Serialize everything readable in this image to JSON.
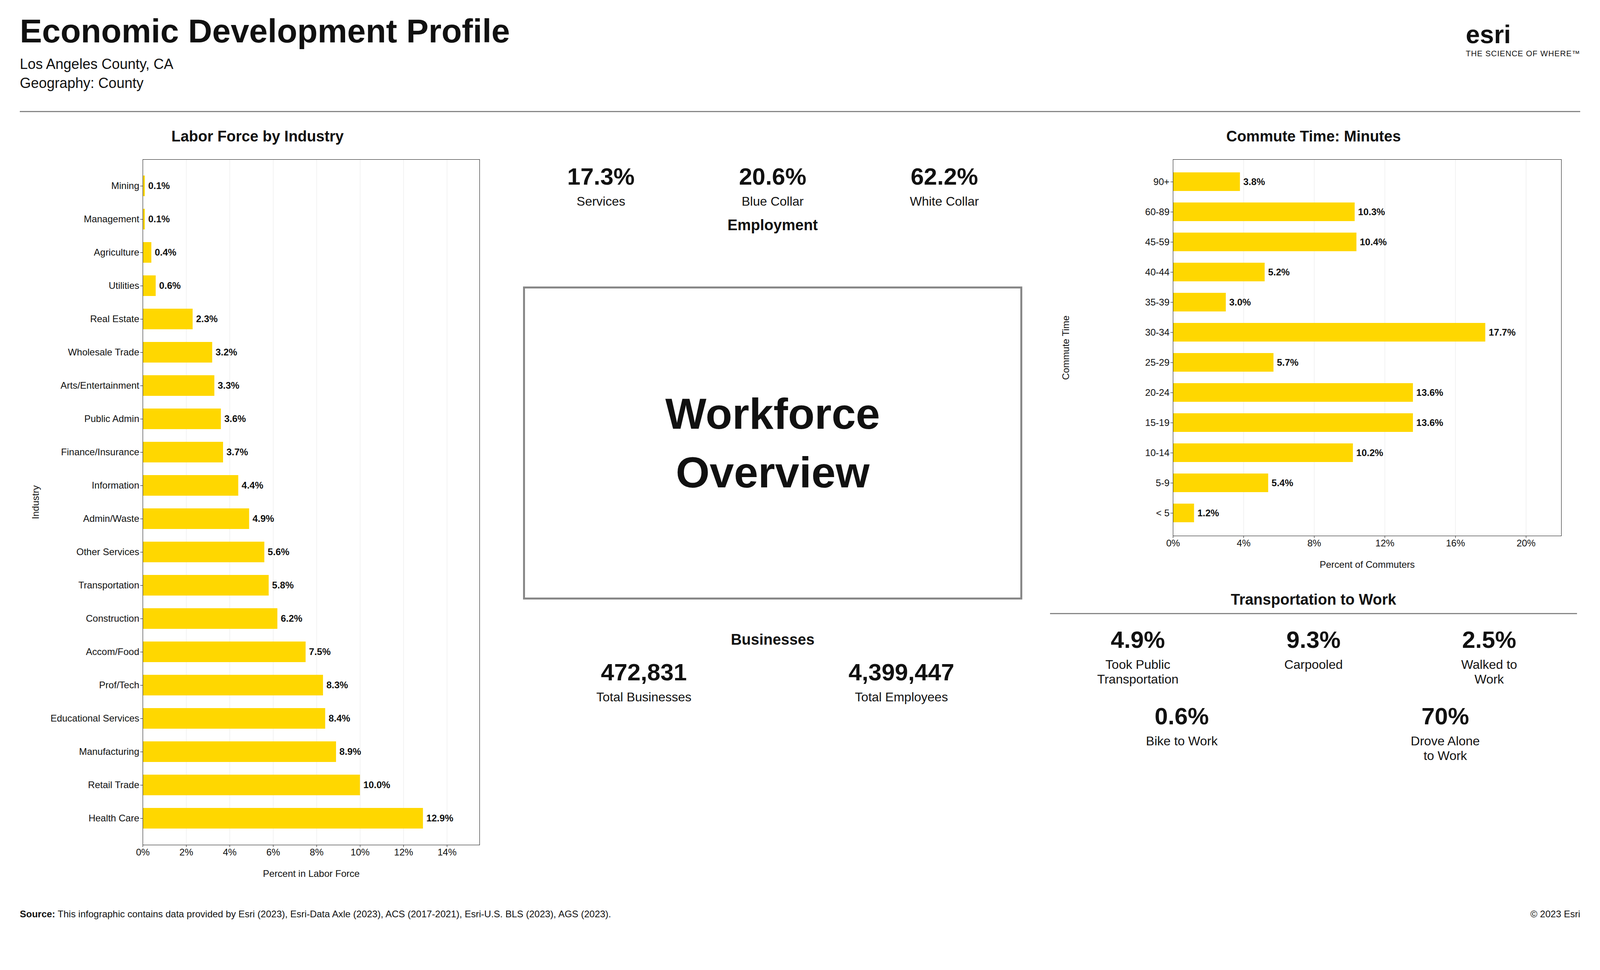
{
  "title": "Economic Development Profile",
  "subtitle": [
    "Los Angeles County, CA",
    "Geography: County"
  ],
  "logo": [
    "esri",
    "THE SCIENCE OF WHERE™"
  ],
  "chart_data": [
    {
      "type": "bar",
      "orientation": "horizontal",
      "title": "Labor Force by Industry",
      "categories": [
        "Mining",
        "Management",
        "Agriculture",
        "Utilities",
        "Real Estate",
        "Wholesale Trade",
        "Arts/Entertainment",
        "Public Admin",
        "Finance/Insurance",
        "Information",
        "Admin/Waste",
        "Other Services",
        "Transportation",
        "Construction",
        "Accom/Food",
        "Prof/Tech",
        "Educational Services",
        "Manufacturing",
        "Retail Trade",
        "Health Care"
      ],
      "values": [
        0.1,
        0.1,
        0.4,
        0.6,
        2.3,
        3.2,
        3.3,
        3.6,
        3.7,
        4.4,
        4.9,
        5.6,
        5.8,
        6.2,
        7.5,
        8.3,
        8.4,
        8.9,
        10.0,
        12.9
      ],
      "value_labels": [
        "0.1%",
        "0.1%",
        "0.4%",
        "0.6%",
        "2.3%",
        "3.2%",
        "3.3%",
        "3.6%",
        "3.7%",
        "4.4%",
        "4.9%",
        "5.6%",
        "5.8%",
        "6.2%",
        "7.5%",
        "8.3%",
        "8.4%",
        "8.9%",
        "10.0%",
        "12.9%"
      ],
      "data_labels": true,
      "color": "#FFD700",
      "xlabel": "Percent in Labor Force",
      "ylabel": "Industry",
      "xlim": [
        0,
        15.5
      ],
      "xticks": [
        {
          "value": 0,
          "label": "0%"
        },
        {
          "value": 2,
          "label": "2%"
        },
        {
          "value": 4,
          "label": "4%"
        },
        {
          "value": 6,
          "label": "6%"
        },
        {
          "value": 8,
          "label": "8%"
        },
        {
          "value": 10,
          "label": "10%"
        },
        {
          "value": 12,
          "label": "12%"
        },
        {
          "value": 14,
          "label": "14%"
        }
      ],
      "grid": true
    },
    {
      "type": "bar",
      "orientation": "horizontal",
      "title": "Commute Time: Minutes",
      "categories": [
        "90+",
        "60-89",
        "45-59",
        "40-44",
        "35-39",
        "30-34",
        "25-29",
        "20-24",
        "15-19",
        "10-14",
        "5-9",
        "< 5"
      ],
      "values": [
        3.8,
        10.3,
        10.4,
        5.2,
        3.0,
        17.7,
        5.7,
        13.6,
        13.6,
        10.2,
        5.4,
        1.2
      ],
      "value_labels": [
        "3.8%",
        "10.3%",
        "10.4%",
        "5.2%",
        "3.0%",
        "17.7%",
        "5.7%",
        "13.6%",
        "13.6%",
        "10.2%",
        "5.4%",
        "1.2%"
      ],
      "data_labels": true,
      "color": "#FFD700",
      "xlabel": "Percent of Commuters",
      "ylabel": "Commute Time",
      "xlim": [
        0,
        22
      ],
      "xticks": [
        {
          "value": 0,
          "label": "0%"
        },
        {
          "value": 4,
          "label": "4%"
        },
        {
          "value": 8,
          "label": "8%"
        },
        {
          "value": 12,
          "label": "12%"
        },
        {
          "value": 16,
          "label": "16%"
        },
        {
          "value": 20,
          "label": "20%"
        }
      ],
      "grid": true
    }
  ],
  "annotations": {
    "employment": {
      "title": "Employment",
      "items": [
        {
          "label": "17.3%",
          "text": "Services"
        },
        {
          "label": "20.6%",
          "text": "Blue Collar"
        },
        {
          "label": "62.2%",
          "text": "White Collar"
        }
      ]
    },
    "workforce": [
      "Workforce",
      "Overview"
    ],
    "businesses": {
      "title": "Businesses",
      "items": [
        {
          "label": "472,831",
          "text": "Total Businesses"
        },
        {
          "label": "4,399,447",
          "text": "Total Employees"
        }
      ]
    },
    "transport": {
      "title": "Transportation to Work",
      "items": [
        {
          "label": "4.9%",
          "text": "Took Public\nTransportation"
        },
        {
          "label": "9.3%",
          "text": "Carpooled"
        },
        {
          "label": "2.5%",
          "text": "Walked to\nWork"
        },
        {
          "label": "0.6%",
          "text": "Bike to Work"
        },
        {
          "label": "70%",
          "text": "Drove Alone\nto Work"
        }
      ]
    },
    "source": [
      "Source:",
      "This infographic contains data provided by Esri (2023), Esri-Data Axle (2023), ACS (2017-2021), Esri-U.S. BLS (2023), AGS (2023)."
    ],
    "copyright": "© 2023 Esri"
  }
}
